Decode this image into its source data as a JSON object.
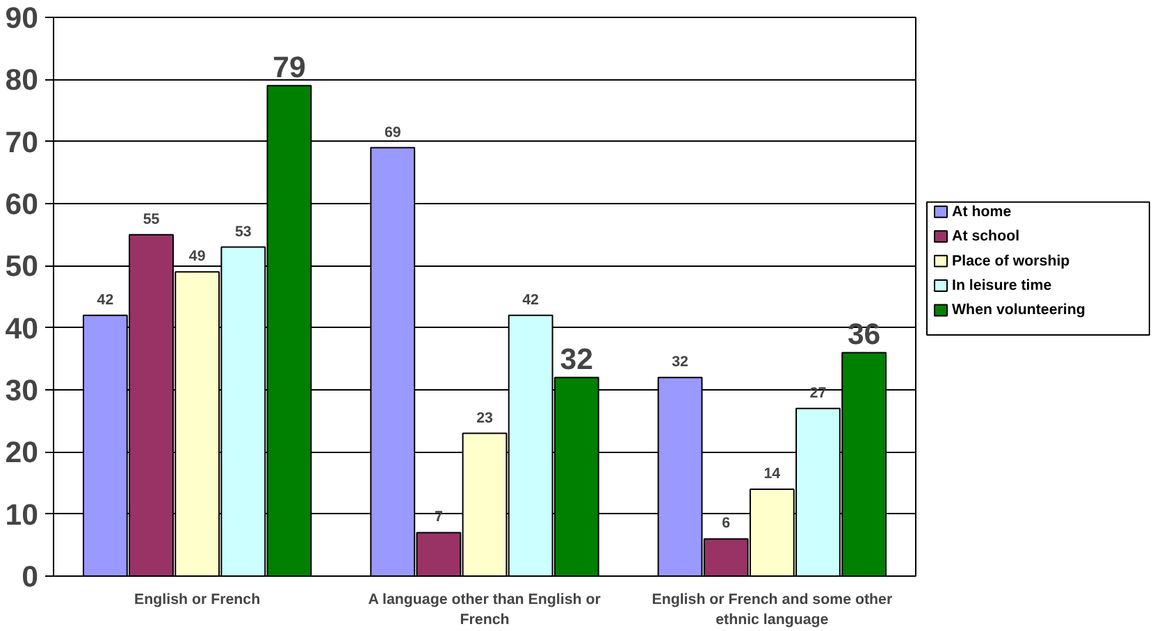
{
  "chart_data": {
    "type": "bar",
    "categories": [
      "English or French",
      "A language other than English or French",
      "English or French and some other ethnic language"
    ],
    "series": [
      {
        "name": "At home",
        "color": "#9999ff",
        "values": [
          42,
          69,
          32
        ]
      },
      {
        "name": "At school",
        "color": "#993366",
        "values": [
          55,
          7,
          6
        ]
      },
      {
        "name": "Place of worship",
        "color": "#ffffcc",
        "values": [
          49,
          23,
          14
        ]
      },
      {
        "name": "In leisure time",
        "color": "#ccffff",
        "values": [
          53,
          42,
          27
        ]
      },
      {
        "name": "When volunteering",
        "color": "#008000",
        "values": [
          79,
          32,
          36
        ]
      }
    ],
    "ylim": [
      0,
      90
    ],
    "yticks": [
      0,
      10,
      20,
      30,
      40,
      50,
      60,
      70,
      80,
      90
    ],
    "grid": "y",
    "legend": "right",
    "data_labels": true
  }
}
